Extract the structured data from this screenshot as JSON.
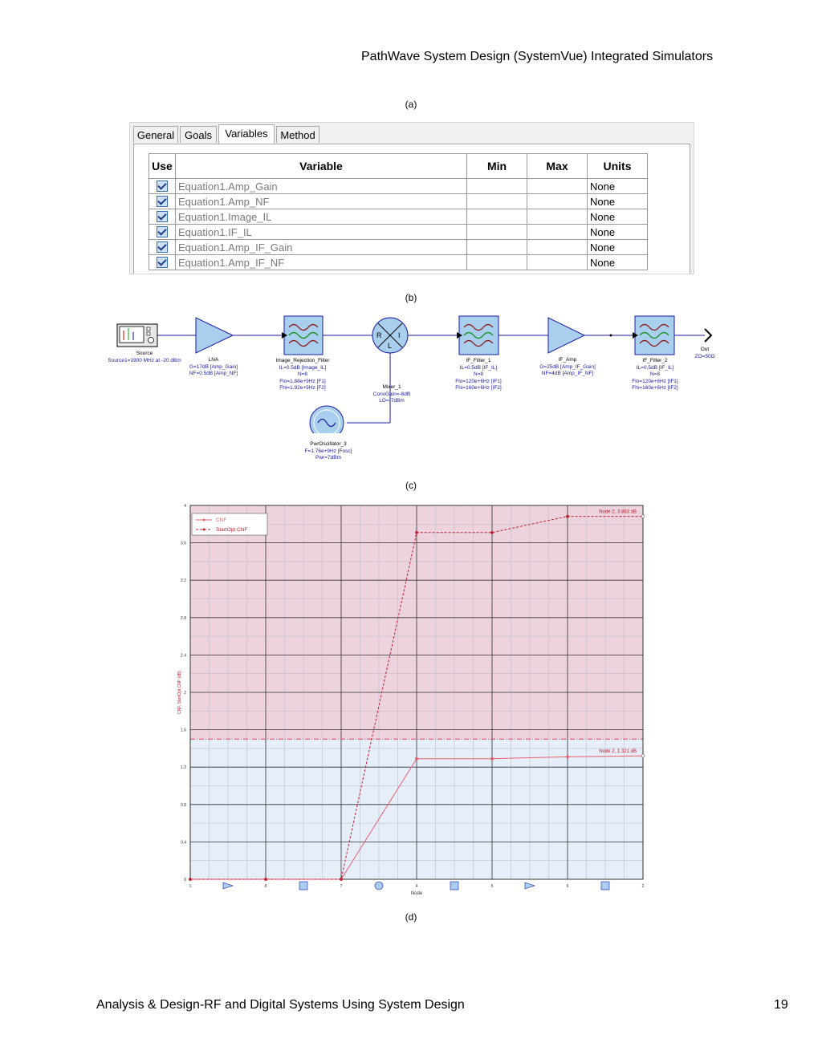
{
  "header": {
    "title": "PathWave System Design (SystemVue) Integrated Simulators"
  },
  "captions": {
    "a": "(a)",
    "b": "(b)",
    "c": "(c)",
    "d": "(d)"
  },
  "dialog": {
    "tabs": [
      {
        "label": "General"
      },
      {
        "label": "Goals"
      },
      {
        "label": "Variables"
      },
      {
        "label": "Method"
      }
    ],
    "active_tab": "Variables",
    "columns": {
      "use": "Use",
      "variable": "Variable",
      "min": "Min",
      "max": "Max",
      "units": "Units"
    },
    "rows": [
      {
        "checked": true,
        "variable": "Equation1.Amp_Gain",
        "min": "",
        "max": "",
        "units": "None"
      },
      {
        "checked": true,
        "variable": "Equation1.Amp_NF",
        "min": "",
        "max": "",
        "units": "None"
      },
      {
        "checked": true,
        "variable": "Equation1.Image_IL",
        "min": "",
        "max": "",
        "units": "None"
      },
      {
        "checked": true,
        "variable": "Equation1.IF_IL",
        "min": "",
        "max": "",
        "units": "None"
      },
      {
        "checked": true,
        "variable": "Equation1.Amp_IF_Gain",
        "min": "",
        "max": "",
        "units": "None"
      },
      {
        "checked": true,
        "variable": "Equation1.Amp_IF_NF",
        "min": "",
        "max": "",
        "units": "None"
      }
    ]
  },
  "schematic": {
    "source": {
      "name": "Source",
      "params": [
        "Source1=1900 MHz at -20 dBm"
      ]
    },
    "lna": {
      "name": "LNA",
      "params": [
        "G=17dB [Amp_Gain]",
        "NF=0.5dB [Amp_NF]"
      ]
    },
    "image_filter": {
      "name": "Image_Rejection_Filter",
      "params": [
        "IL=0.5dB [Image_IL]",
        "N=8",
        "Flo=1.88e+9Hz [F1]",
        "Fhi=1.92e+9Hz [F2]"
      ]
    },
    "mixer": {
      "name": "Mixer_1",
      "params": [
        "ConvGain=-8dB",
        "LO=-7dBm"
      ],
      "ports": {
        "r": "R",
        "i": "I",
        "l": "L"
      }
    },
    "oscillator": {
      "name": "PwrOscillator_3",
      "params": [
        "F=1.76e+9Hz [Fosc]",
        "Pwr=7dBm"
      ]
    },
    "if_filter_1": {
      "name": "IF_Filter_1",
      "params": [
        "IL=0.5dB [IF_IL]",
        "N=8",
        "Flo=120e+6Hz [IF1]",
        "Fhi=160e+6Hz [IF2]"
      ]
    },
    "if_amp": {
      "name": "IF_Amp",
      "params": [
        "G=25dB [Amp_IF_Gain]",
        "NF=4dB [Amp_IF_NF]"
      ]
    },
    "if_filter_2": {
      "name": "IF_Filter_2",
      "params": [
        "IL=0.5dB [IF_IL]",
        "N=8",
        "Flo=120e+6Hz [IF1]",
        "Fhi=160e+6Hz [IF2]"
      ]
    },
    "out": {
      "name": "Out",
      "params": [
        "ZO=50Ω"
      ]
    }
  },
  "chart_data": {
    "type": "line",
    "xlabel": "Node",
    "ylabel": "CNF, StartOpt.CNF (dB)",
    "ylim": [
      0,
      4
    ],
    "yticks": [
      0,
      0.4,
      0.8,
      1.2,
      1.6,
      2,
      2.4,
      2.8,
      3.2,
      3.6,
      4
    ],
    "categories": [
      "1",
      "8",
      "7",
      "4",
      "5",
      "6",
      "2"
    ],
    "node_icons": [
      "amp-icon",
      "filter-icon",
      "mixer-icon",
      "filter-icon",
      "amp-icon",
      "filter-icon"
    ],
    "series": [
      {
        "name": "CNF",
        "values": [
          0,
          0,
          0,
          1.29,
          1.29,
          1.31,
          1.321
        ],
        "color": "#e8606a",
        "style": "solid"
      },
      {
        "name": "StartOpt.CNF",
        "values": [
          0,
          0,
          0,
          3.71,
          3.71,
          3.883,
          3.883
        ],
        "color": "#c0202c",
        "style": "dashed"
      }
    ],
    "threshold": 1.5,
    "upper_region_color": "#ecd3de",
    "lower_region_color": "#e6eefa",
    "annotations": [
      {
        "text": "Node 2, 3.883 dB",
        "value": 3.883
      },
      {
        "text": "Node 2, 1.321 dB",
        "value": 1.321
      }
    ],
    "legend_placement": "top-left",
    "grid": true
  },
  "footer": {
    "left": "Analysis & Design-RF and Digital Systems Using System Design",
    "page": "19"
  }
}
